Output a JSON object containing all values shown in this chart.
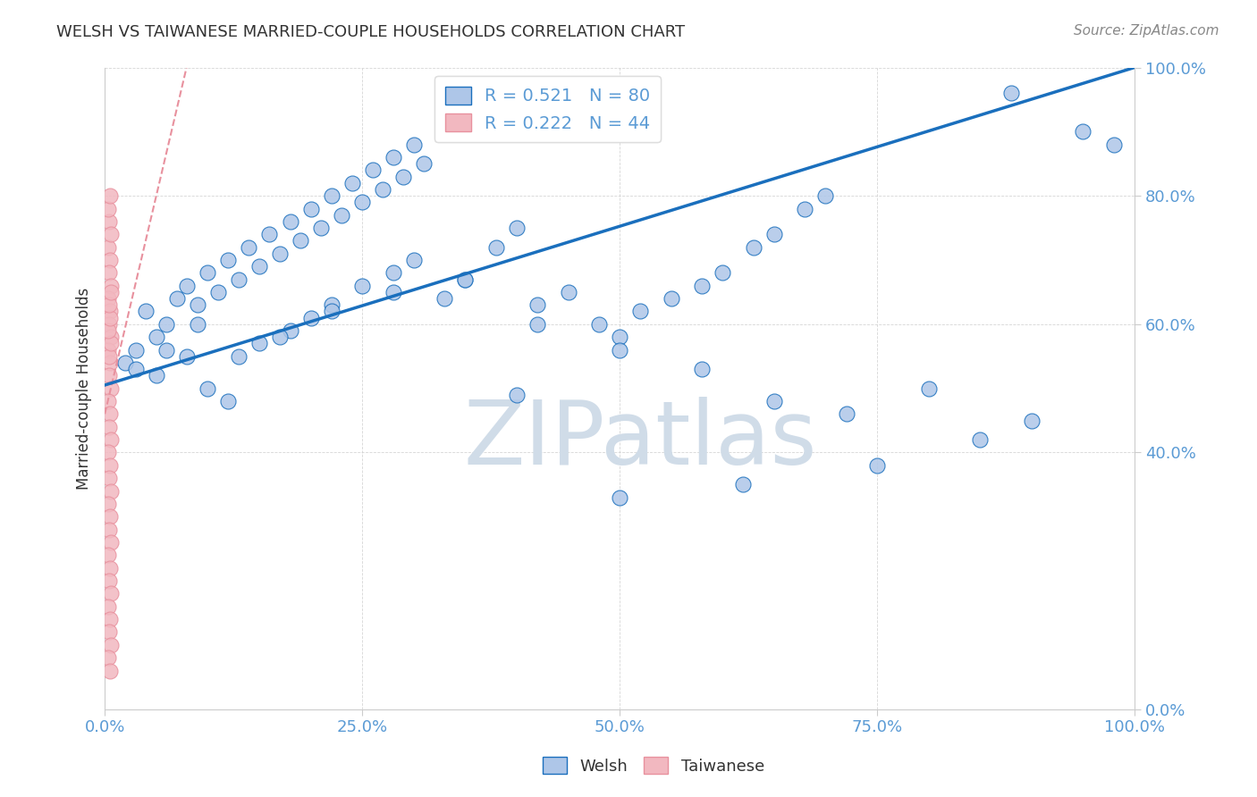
{
  "title": "WELSH VS TAIWANESE MARRIED-COUPLE HOUSEHOLDS CORRELATION CHART",
  "source": "Source: ZipAtlas.com",
  "ylabel": "Married-couple Households",
  "watermark": "ZIPatlas",
  "welsh_R": 0.521,
  "welsh_N": 80,
  "taiwanese_R": 0.222,
  "taiwanese_N": 44,
  "welsh_x": [
    0.02,
    0.03,
    0.04,
    0.05,
    0.06,
    0.07,
    0.08,
    0.09,
    0.1,
    0.11,
    0.12,
    0.13,
    0.14,
    0.15,
    0.16,
    0.17,
    0.18,
    0.19,
    0.2,
    0.21,
    0.22,
    0.23,
    0.24,
    0.25,
    0.26,
    0.27,
    0.28,
    0.29,
    0.3,
    0.31,
    0.05,
    0.08,
    0.1,
    0.12,
    0.15,
    0.18,
    0.2,
    0.22,
    0.25,
    0.28,
    0.3,
    0.33,
    0.35,
    0.38,
    0.4,
    0.42,
    0.45,
    0.48,
    0.5,
    0.52,
    0.55,
    0.58,
    0.6,
    0.63,
    0.65,
    0.68,
    0.7,
    0.03,
    0.06,
    0.09,
    0.13,
    0.17,
    0.22,
    0.28,
    0.35,
    0.42,
    0.5,
    0.58,
    0.65,
    0.72,
    0.8,
    0.85,
    0.9,
    0.95,
    0.98,
    0.4,
    0.5,
    0.62,
    0.75,
    0.88
  ],
  "welsh_y": [
    0.54,
    0.56,
    0.62,
    0.58,
    0.6,
    0.64,
    0.66,
    0.63,
    0.68,
    0.65,
    0.7,
    0.67,
    0.72,
    0.69,
    0.74,
    0.71,
    0.76,
    0.73,
    0.78,
    0.75,
    0.8,
    0.77,
    0.82,
    0.79,
    0.84,
    0.81,
    0.86,
    0.83,
    0.88,
    0.85,
    0.52,
    0.55,
    0.5,
    0.48,
    0.57,
    0.59,
    0.61,
    0.63,
    0.66,
    0.68,
    0.7,
    0.64,
    0.67,
    0.72,
    0.75,
    0.63,
    0.65,
    0.6,
    0.58,
    0.62,
    0.64,
    0.66,
    0.68,
    0.72,
    0.74,
    0.78,
    0.8,
    0.53,
    0.56,
    0.6,
    0.55,
    0.58,
    0.62,
    0.65,
    0.67,
    0.6,
    0.56,
    0.53,
    0.48,
    0.46,
    0.5,
    0.42,
    0.45,
    0.9,
    0.88,
    0.49,
    0.33,
    0.35,
    0.38,
    0.96
  ],
  "taiwanese_x": [
    0.003,
    0.005,
    0.004,
    0.006,
    0.003,
    0.005,
    0.004,
    0.006,
    0.003,
    0.005,
    0.004,
    0.006,
    0.003,
    0.005,
    0.004,
    0.006,
    0.003,
    0.005,
    0.004,
    0.006,
    0.003,
    0.005,
    0.004,
    0.006,
    0.003,
    0.005,
    0.004,
    0.006,
    0.003,
    0.005,
    0.004,
    0.006,
    0.003,
    0.005,
    0.004,
    0.006,
    0.003,
    0.005,
    0.004,
    0.006,
    0.003,
    0.005,
    0.004,
    0.006
  ],
  "taiwanese_y": [
    0.72,
    0.7,
    0.68,
    0.66,
    0.64,
    0.62,
    0.6,
    0.58,
    0.56,
    0.54,
    0.52,
    0.5,
    0.48,
    0.46,
    0.44,
    0.42,
    0.4,
    0.38,
    0.36,
    0.34,
    0.32,
    0.3,
    0.28,
    0.26,
    0.24,
    0.22,
    0.2,
    0.18,
    0.16,
    0.14,
    0.76,
    0.74,
    0.78,
    0.8,
    0.12,
    0.1,
    0.08,
    0.06,
    0.55,
    0.57,
    0.59,
    0.61,
    0.63,
    0.65
  ],
  "welsh_line_color": "#1a6fbd",
  "welsh_dot_color": "#aec6e8",
  "taiwanese_line_color": "#e8919e",
  "taiwanese_dot_color": "#f2b8c0",
  "legend_welsh_color": "#aec6e8",
  "legend_taiwanese_color": "#f2b8c0",
  "grid_color": "#cccccc",
  "tick_color": "#5b9bd5",
  "title_color": "#333333",
  "source_color": "#888888",
  "watermark_color": "#d0dce8",
  "ylabel_color": "#333333",
  "background_color": "#ffffff",
  "xlim": [
    0.0,
    1.0
  ],
  "ylim": [
    0.0,
    1.0
  ],
  "xticks": [
    0.0,
    0.25,
    0.5,
    0.75,
    1.0
  ],
  "yticks": [
    0.0,
    0.4,
    0.6,
    0.8,
    1.0
  ],
  "xtick_labels": [
    "0.0%",
    "25.0%",
    "50.0%",
    "75.0%",
    "100.0%"
  ],
  "ytick_labels": [
    "0.0%",
    "40.0%",
    "60.0%",
    "80.0%",
    "100.0%"
  ],
  "welsh_line_x": [
    0.0,
    1.0
  ],
  "welsh_line_y": [
    0.505,
    1.0
  ],
  "taiwanese_line_x": [
    0.0,
    0.05
  ],
  "taiwanese_line_y": [
    0.46,
    0.8
  ]
}
